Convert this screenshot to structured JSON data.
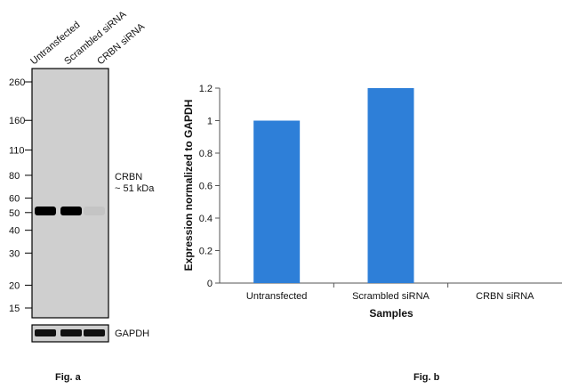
{
  "blot": {
    "lane_labels": [
      "Untransfected",
      "Scrambled siRNA",
      "CRBN siRNA"
    ],
    "mw_markers": [
      "260",
      "160",
      "110",
      "80",
      "60",
      "50",
      "40",
      "30",
      "20",
      "15"
    ],
    "band_label_line1": "CRBN",
    "band_label_line2": "~ 51 kDa",
    "loading_control": "GAPDH",
    "band_intensity": [
      1.0,
      1.0,
      0.05
    ],
    "fig_label": "Fig. a"
  },
  "chart_data": {
    "type": "bar",
    "categories": [
      "Untransfected",
      "Scrambled siRNA",
      "CRBN siRNA"
    ],
    "values": [
      1.0,
      1.2,
      0.0
    ],
    "xlabel": "Samples",
    "ylabel": "Expression normalized to GAPDH",
    "ylim": [
      0,
      1.2
    ],
    "yticks": [
      "0",
      "0.2",
      "0.4",
      "0.6",
      "0.8",
      "1",
      "1.2"
    ],
    "bar_color": "#2e7fd8",
    "grid": false,
    "legend": "none",
    "fig_label": "Fig. b"
  }
}
